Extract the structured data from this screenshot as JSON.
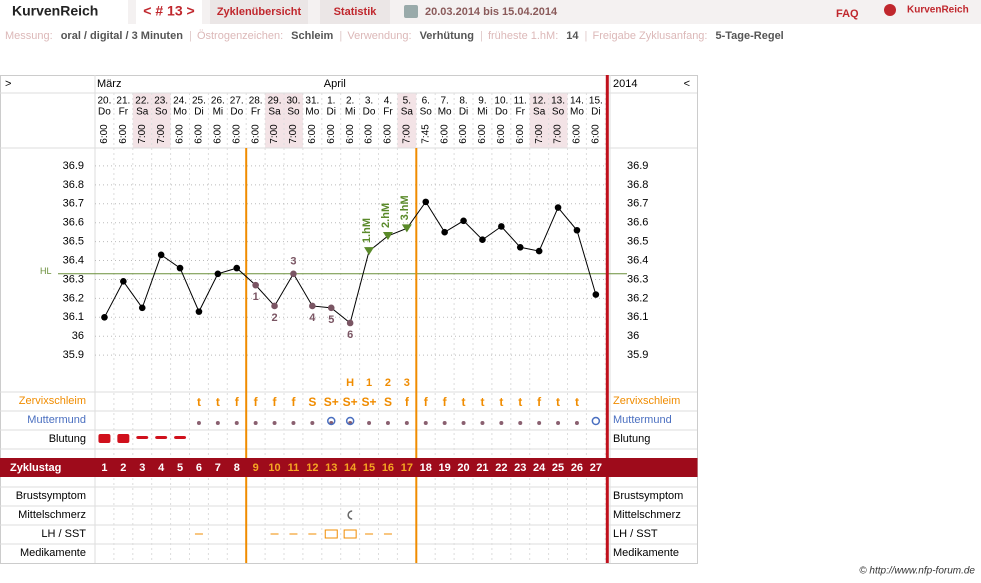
{
  "header": {
    "brand": "KurvenReich",
    "cycle_nav": "< # 13 >",
    "tabs": [
      "Zyklenübersicht",
      "Statistik"
    ],
    "period": "20.03.2014 bis 15.04.2014",
    "faq": "FAQ",
    "logo": "KurvenReich"
  },
  "info": [
    {
      "label": "Messung:",
      "value": "oral / digital / 3 Minuten"
    },
    {
      "label": "Östrogenzeichen:",
      "value": "Schleim"
    },
    {
      "label": "Verwendung:",
      "value": "Verhütung"
    },
    {
      "label": "früheste 1.hM:",
      "value": "14"
    },
    {
      "label": "Freigabe Zyklusanfang:",
      "value": "5-Tage-Regel"
    }
  ],
  "separator": "|",
  "footer": "© http://www.nfp-forum.de",
  "chart_data": {
    "type": "line",
    "nav_left": ">",
    "nav_right": "<",
    "year": "2014",
    "months": [
      {
        "day": 1,
        "label": "März"
      },
      {
        "day": 13,
        "label": "April"
      }
    ],
    "categories": [
      "20.",
      "21.",
      "22.",
      "23.",
      "24.",
      "25.",
      "26.",
      "27.",
      "28.",
      "29.",
      "30.",
      "31.",
      "1.",
      "2.",
      "3.",
      "4.",
      "5.",
      "6.",
      "7.",
      "8.",
      "9.",
      "10.",
      "11.",
      "12.",
      "13.",
      "14.",
      "15."
    ],
    "weekdays": [
      "Do",
      "Fr",
      "Sa",
      "So",
      "Mo",
      "Di",
      "Mi",
      "Do",
      "Fr",
      "Sa",
      "So",
      "Mo",
      "Di",
      "Mi",
      "Do",
      "Fr",
      "Sa",
      "So",
      "Mo",
      "Di",
      "Mi",
      "Do",
      "Fr",
      "Sa",
      "So",
      "Mo",
      "Di"
    ],
    "times": [
      "6:00",
      "6:00",
      "7:00",
      "7:00",
      "6:00",
      "6:00",
      "6:00",
      "6:00",
      "6:00",
      "7:00",
      "7:00",
      "6:00",
      "6:00",
      "6:00",
      "6:00",
      "6:00",
      "7:00",
      "7:45",
      "6:00",
      "6:00",
      "6:00",
      "6:00",
      "6:00",
      "7:00",
      "7:00",
      "6:00",
      "6:00"
    ],
    "shaded_days": [
      3,
      4,
      10,
      11,
      17,
      24,
      25
    ],
    "values": [
      36.1,
      36.29,
      36.15,
      36.43,
      36.36,
      36.13,
      36.33,
      36.36,
      36.27,
      36.16,
      36.33,
      36.16,
      36.15,
      36.07,
      36.45,
      36.53,
      36.57,
      36.71,
      36.55,
      36.61,
      36.51,
      36.58,
      36.47,
      36.45,
      36.68,
      36.56,
      36.22
    ],
    "color": "#000000",
    "ylim": [
      35.7,
      37.0
    ],
    "yticks": [
      35.9,
      36,
      36.1,
      36.2,
      36.3,
      36.4,
      36.5,
      36.6,
      36.7,
      36.8,
      36.9
    ],
    "cover_line": {
      "value": 36.33,
      "label": "HL",
      "color": "#6a8f3a"
    },
    "low_labels": [
      {
        "day": 9,
        "label": "1"
      },
      {
        "day": 10,
        "label": "2"
      },
      {
        "day": 11,
        "label": "3"
      },
      {
        "day": 12,
        "label": "4"
      },
      {
        "day": 13,
        "label": "5"
      },
      {
        "day": 14,
        "label": "6"
      }
    ],
    "hm_labels": [
      {
        "day": 15,
        "label": "1.hM"
      },
      {
        "day": 16,
        "label": "2.hM"
      },
      {
        "day": 17,
        "label": "3.hM"
      }
    ],
    "peak_row": [
      null,
      null,
      null,
      null,
      null,
      null,
      null,
      null,
      null,
      null,
      null,
      null,
      null,
      "H",
      "1",
      "2",
      "3",
      null,
      null,
      null,
      null,
      null,
      null,
      null,
      null,
      null,
      null
    ],
    "rows_top": [
      {
        "label": "Zervixschleim",
        "values": [
          null,
          null,
          null,
          null,
          null,
          "t",
          "t",
          "f",
          "f",
          "f",
          "f",
          "S",
          "S+",
          "S+",
          "S+",
          "S",
          "f",
          "f",
          "f",
          "t",
          "t",
          "t",
          "t",
          "f",
          "t",
          "t",
          null
        ]
      },
      {
        "label": "Muttermund"
      },
      {
        "label": "Blutung"
      }
    ],
    "cycle_label": "Zyklustag",
    "cycle_days": [
      1,
      2,
      3,
      4,
      5,
      6,
      7,
      8,
      9,
      10,
      11,
      12,
      13,
      14,
      15,
      16,
      17,
      18,
      19,
      20,
      21,
      22,
      23,
      24,
      25,
      26,
      27
    ],
    "rows_bottom": [
      "Brustsymptom",
      "Mittelschmerz",
      "LH / SST",
      "Medikamente"
    ]
  }
}
